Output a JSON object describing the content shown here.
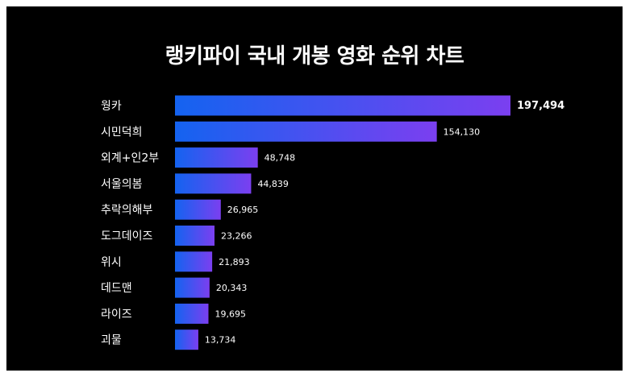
{
  "chart_data": {
    "type": "bar",
    "orientation": "horizontal",
    "title": "랭키파이 국내 개봉 영화 순위 차트",
    "categories": [
      "웡카",
      "시민덕희",
      "외계+인2부",
      "서울의봄",
      "추락의해부",
      "도그데이즈",
      "위시",
      "데드맨",
      "라이즈",
      "괴물"
    ],
    "values": [
      197494,
      154130,
      48748,
      44839,
      26965,
      23266,
      21893,
      20343,
      19695,
      13734
    ],
    "value_labels": [
      "197,494",
      "154,130",
      "48,748",
      "44,839",
      "26,965",
      "23,266",
      "21,893",
      "20,343",
      "19,695",
      "13,734"
    ],
    "xlabel": "",
    "ylabel": "",
    "xlim": [
      0,
      197494
    ],
    "grid": false,
    "legend": "none",
    "colors": {
      "background": "#000000",
      "frame": "#ffffff",
      "bar_gradient_start": "#1463f0",
      "bar_gradient_end": "#7b3ff0",
      "text": "#ffffff"
    }
  }
}
